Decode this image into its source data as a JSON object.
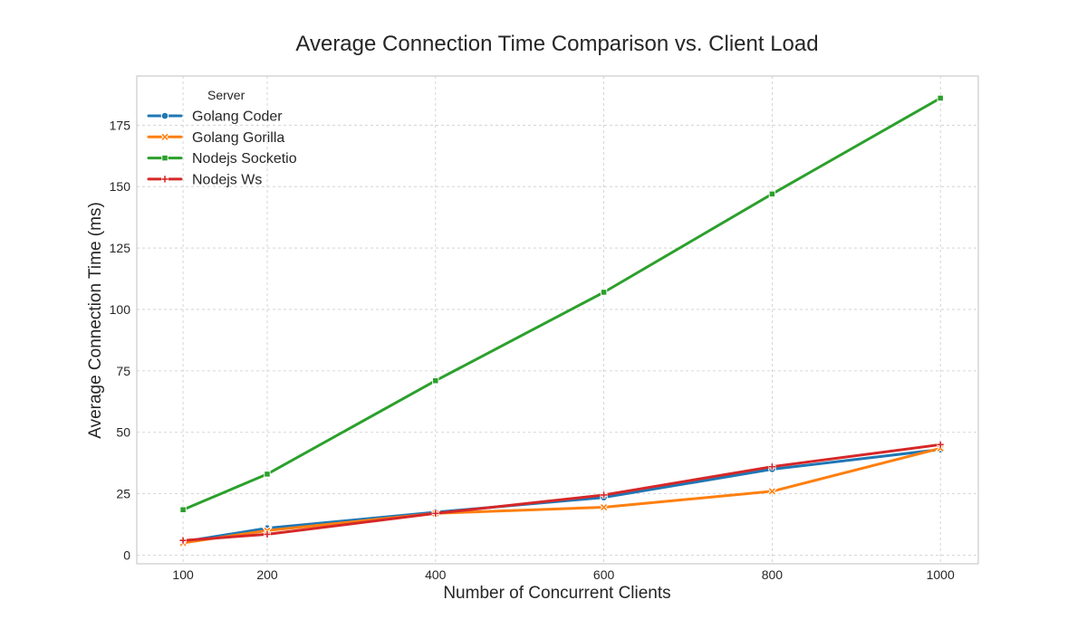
{
  "chart_data": {
    "type": "line",
    "title": "Average Connection Time Comparison vs. Client Load",
    "xlabel": "Number of Concurrent Clients",
    "ylabel": "Average Connection Time (ms)",
    "x": [
      100,
      200,
      400,
      600,
      800,
      1000
    ],
    "xticks": [
      "100",
      "200",
      "400",
      "600",
      "800",
      "1000"
    ],
    "yticks": [
      "0",
      "25",
      "50",
      "75",
      "100",
      "125",
      "150",
      "175"
    ],
    "xlim": [
      45,
      1045
    ],
    "ylim": [
      -3.5,
      195
    ],
    "grid": true,
    "legend": {
      "title": "Server",
      "placement": "top-left"
    },
    "series": [
      {
        "name": "Golang Coder",
        "color": "#1f77b4",
        "marker": "circle",
        "values": [
          5.5,
          11,
          17.5,
          23.5,
          35,
          43
        ]
      },
      {
        "name": "Golang Gorilla",
        "color": "#ff7f0e",
        "marker": "x",
        "values": [
          5,
          10,
          17,
          19.5,
          26,
          43.5
        ]
      },
      {
        "name": "Nodejs Socketio",
        "color": "#2ca02c",
        "marker": "square",
        "values": [
          18.5,
          33,
          71,
          107,
          147,
          186
        ]
      },
      {
        "name": "Nodejs Ws",
        "color": "#d62728",
        "marker": "plus",
        "values": [
          6,
          8.5,
          17,
          24.5,
          36,
          45
        ]
      }
    ]
  }
}
